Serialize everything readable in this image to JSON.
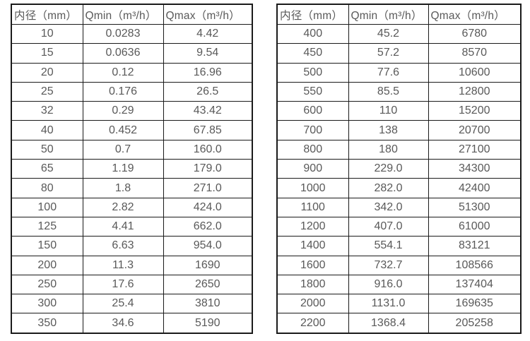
{
  "page": {
    "background_color": "#ffffff",
    "text_color": "#595959",
    "border_color": "#1a1a1a",
    "description": "Two side-by-side flow range tables: inner diameter vs Qmin and Qmax"
  },
  "tables": [
    {
      "headers": [
        "内径（mm）",
        "Qmin（m³/h）",
        "Qmax（m³/h）"
      ],
      "rows": [
        [
          "10",
          "0.0283",
          "4.42"
        ],
        [
          "15",
          "0.0636",
          "9.54"
        ],
        [
          "20",
          "0.12",
          "16.96"
        ],
        [
          "25",
          "0.176",
          "26.5"
        ],
        [
          "32",
          "0.29",
          "43.42"
        ],
        [
          "40",
          "0.452",
          "67.85"
        ],
        [
          "50",
          "0.7",
          "160.0"
        ],
        [
          "65",
          "1.19",
          "179.0"
        ],
        [
          "80",
          "1.8",
          "271.0"
        ],
        [
          "100",
          "2.82",
          "424.0"
        ],
        [
          "125",
          "4.41",
          "662.0"
        ],
        [
          "150",
          "6.63",
          "954.0"
        ],
        [
          "200",
          "11.3",
          "1690"
        ],
        [
          "250",
          "17.6",
          "2650"
        ],
        [
          "300",
          "25.4",
          "3810"
        ],
        [
          "350",
          "34.6",
          "5190"
        ]
      ]
    },
    {
      "headers": [
        "内径（mm）",
        "Qmin（m³/h）",
        "Qmax（m³/h）"
      ],
      "rows": [
        [
          "400",
          "45.2",
          "6780"
        ],
        [
          "450",
          "57.2",
          "8570"
        ],
        [
          "500",
          "77.6",
          "10600"
        ],
        [
          "550",
          "85.5",
          "12800"
        ],
        [
          "600",
          "110",
          "15200"
        ],
        [
          "700",
          "138",
          "20700"
        ],
        [
          "800",
          "180",
          "27100"
        ],
        [
          "900",
          "229.0",
          "34300"
        ],
        [
          "1000",
          "282.0",
          "42400"
        ],
        [
          "1100",
          "342.0",
          "51300"
        ],
        [
          "1200",
          "407.0",
          "61000"
        ],
        [
          "1400",
          "554.1",
          "83121"
        ],
        [
          "1600",
          "732.7",
          "108566"
        ],
        [
          "1800",
          "916.0",
          "137404"
        ],
        [
          "2000",
          "1131.0",
          "169635"
        ],
        [
          "2200",
          "1368.4",
          "205258"
        ]
      ]
    }
  ]
}
